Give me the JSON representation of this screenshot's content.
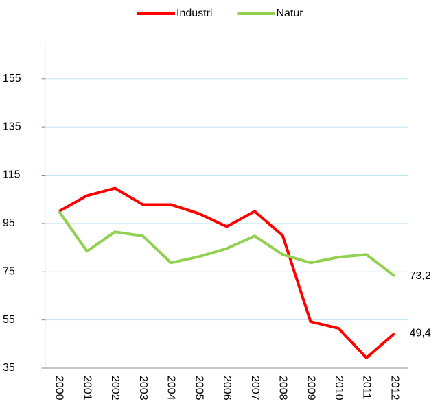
{
  "chart_data": {
    "type": "line",
    "categories": [
      "2000",
      "2001",
      "2002",
      "2003",
      "2004",
      "2005",
      "2006",
      "2007",
      "2008",
      "2009",
      "2010",
      "2011",
      "2012"
    ],
    "series": [
      {
        "name": "Industri",
        "color": "#ff0000",
        "values": [
          100,
          106.5,
          109.6,
          102.8,
          102.8,
          99.1,
          93.7,
          100,
          90,
          54.3,
          51.5,
          39.3,
          49.4
        ],
        "value_labels": [
          null,
          null,
          null,
          null,
          null,
          null,
          null,
          null,
          null,
          null,
          null,
          null,
          "49,4"
        ]
      },
      {
        "name": "Natur",
        "color": "#92d050",
        "values": [
          100,
          83.5,
          91.5,
          89.8,
          78.7,
          81.2,
          84.6,
          89.8,
          82.1,
          78.7,
          81,
          82.1,
          73.2
        ],
        "value_labels": [
          null,
          null,
          null,
          null,
          null,
          null,
          null,
          null,
          null,
          null,
          null,
          null,
          "73,2"
        ]
      }
    ],
    "ylim": [
      35,
      170
    ],
    "yticks": [
      35,
      55,
      75,
      95,
      115,
      135,
      155
    ],
    "grid": true,
    "legend": "top"
  }
}
